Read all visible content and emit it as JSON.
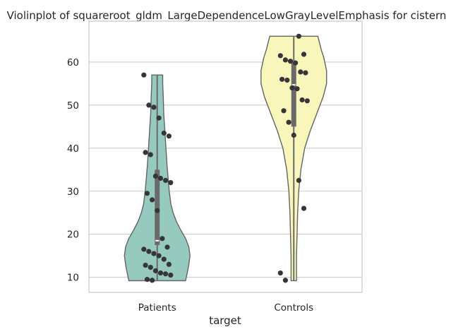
{
  "chart_data": {
    "type": "violin",
    "title": "Violinplot of squareroot_gldm_LargeDependenceLowGrayLevelEmphasis for cistern",
    "xlabel": "target",
    "ylabel": "",
    "categories": [
      "Patients",
      "Controls"
    ],
    "ylim": [
      6.5,
      69.5
    ],
    "yticks": [
      10,
      20,
      30,
      40,
      50,
      60
    ],
    "grid": true,
    "colors": {
      "Patients": "#96cabf",
      "Controls": "#f8f6bb",
      "outline": "#646464",
      "box": "#6a6a6a",
      "points": "#363636"
    },
    "violins": [
      {
        "category": "Patients",
        "min": 9.2,
        "max": 57.0,
        "q1": 17.5,
        "median": 18.5,
        "q3": 35.0,
        "profile": [
          [
            9.2,
            0.52
          ],
          [
            11,
            0.55
          ],
          [
            13,
            0.58
          ],
          [
            15,
            0.6
          ],
          [
            17,
            0.58
          ],
          [
            19,
            0.52
          ],
          [
            21,
            0.43
          ],
          [
            23,
            0.35
          ],
          [
            25,
            0.29
          ],
          [
            27,
            0.25
          ],
          [
            30,
            0.22
          ],
          [
            33,
            0.2
          ],
          [
            36,
            0.18
          ],
          [
            40,
            0.16
          ],
          [
            44,
            0.14
          ],
          [
            48,
            0.12
          ],
          [
            52,
            0.11
          ],
          [
            55,
            0.1
          ],
          [
            57,
            0.1
          ]
        ],
        "points": [
          57.0,
          50.0,
          49.5,
          47.0,
          43.5,
          42.8,
          39.0,
          38.5,
          33.5,
          33.0,
          32.5,
          32.0,
          29.5,
          28.0,
          25.5,
          19.0,
          17.0,
          16.5,
          16.0,
          15.5,
          15.0,
          14.2,
          13.0,
          12.8,
          12.3,
          11.5,
          11.0,
          10.8,
          10.5,
          9.5,
          9.3
        ]
      },
      {
        "category": "Controls",
        "min": 9.2,
        "max": 66.0,
        "q1": 45.0,
        "median": 54.7,
        "q3": 60.0,
        "profile": [
          [
            9.2,
            0.05
          ],
          [
            15,
            0.05
          ],
          [
            20,
            0.06
          ],
          [
            25,
            0.07
          ],
          [
            30,
            0.09
          ],
          [
            35,
            0.13
          ],
          [
            40,
            0.2
          ],
          [
            44,
            0.3
          ],
          [
            48,
            0.42
          ],
          [
            52,
            0.54
          ],
          [
            55,
            0.6
          ],
          [
            58,
            0.6
          ],
          [
            61,
            0.55
          ],
          [
            63,
            0.5
          ],
          [
            65,
            0.46
          ],
          [
            66,
            0.44
          ]
        ],
        "points": [
          66.0,
          61.8,
          61.5,
          60.5,
          60.2,
          59.8,
          57.7,
          57.5,
          56.0,
          55.8,
          54.0,
          53.8,
          51.2,
          51.0,
          48.7,
          46.0,
          43.0,
          32.5,
          26.0,
          11.0,
          9.3
        ]
      }
    ]
  }
}
